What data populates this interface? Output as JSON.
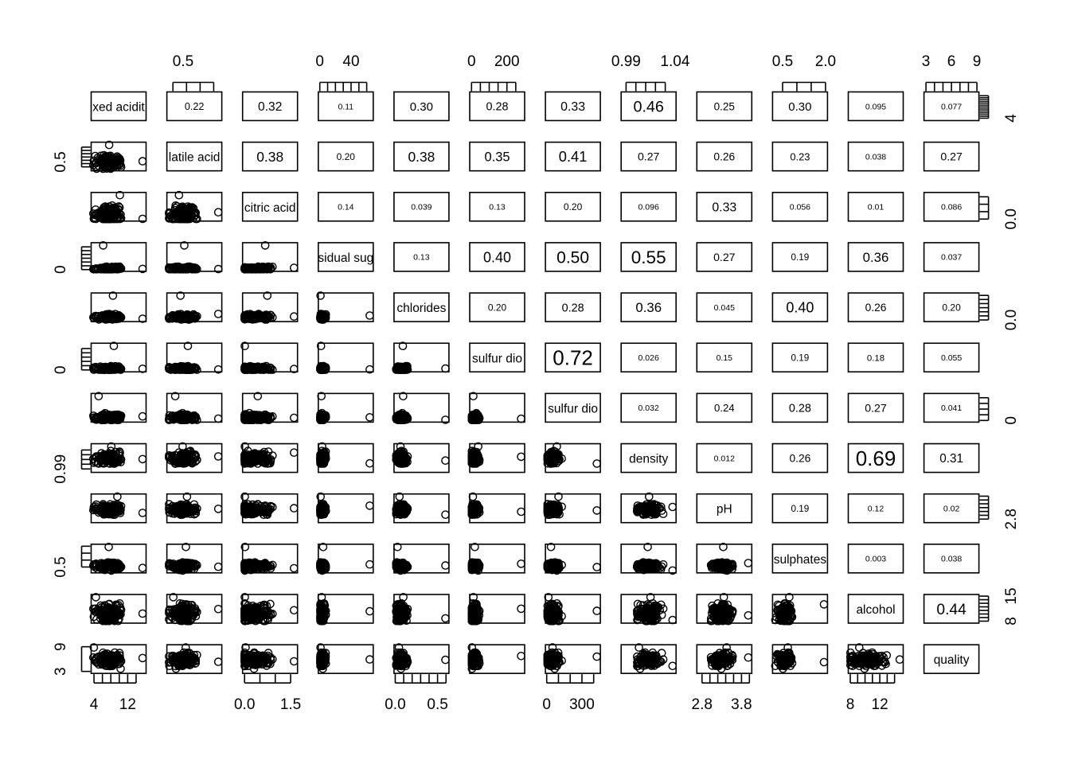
{
  "chart_data": {
    "type": "scatter",
    "variables": [
      "fixed acidity",
      "volatile acidity",
      "citric acid",
      "residual sugar",
      "chlorides",
      "free sulfur dioxide",
      "total sulfur dioxide",
      "density",
      "pH",
      "sulphates",
      "alcohol",
      "quality"
    ],
    "diagonal_labels": [
      "xed acidit",
      "latile acid",
      "citric acid",
      "sidual sug",
      "chlorides",
      "sulfur dio",
      "sulfur dio",
      "density",
      "pH",
      "sulphates",
      "alcohol",
      "quality"
    ],
    "ranges": [
      [
        3.8,
        15.9
      ],
      [
        0.08,
        1.58
      ],
      [
        0,
        1.66
      ],
      [
        0.6,
        65.8
      ],
      [
        0.009,
        0.611
      ],
      [
        1,
        289
      ],
      [
        6,
        440
      ],
      [
        0.987,
        1.039
      ],
      [
        2.72,
        4.01
      ],
      [
        0.22,
        2.0
      ],
      [
        8,
        14.9
      ],
      [
        3,
        9
      ]
    ],
    "upper_correlations": [
      [
        "0.22",
        "0.32",
        "0.11",
        "0.30",
        "0.28",
        "0.33",
        "0.46",
        "0.25",
        "0.30",
        "0.095",
        "0.077"
      ],
      [
        "0.38",
        "0.20",
        "0.38",
        "0.35",
        "0.41",
        "0.27",
        "0.26",
        "0.23",
        "0.038",
        "0.27"
      ],
      [
        "0.14",
        "0.039",
        "0.13",
        "0.20",
        "0.096",
        "0.33",
        "0.056",
        "0.01",
        "0.086"
      ],
      [
        "0.13",
        "0.40",
        "0.50",
        "0.55",
        "0.27",
        "0.19",
        "0.36",
        "0.037"
      ],
      [
        "0.20",
        "0.28",
        "0.36",
        "0.045",
        "0.40",
        "0.26",
        "0.20"
      ],
      [
        "0.72",
        "0.026",
        "0.15",
        "0.19",
        "0.18",
        "0.055"
      ],
      [
        "0.032",
        "0.24",
        "0.28",
        "0.27",
        "0.041"
      ],
      [
        "0.012",
        "0.26",
        "0.69",
        "0.31"
      ],
      [
        "0.19",
        "0.12",
        "0.02"
      ],
      [
        "0.003",
        "0.038"
      ],
      [
        "0.44"
      ]
    ],
    "top_axis": [
      {
        "col": 1,
        "ticks": [
          0.2,
          0.6,
          1.0,
          1.4
        ],
        "labels": [
          {
            "value": 0.5,
            "text": "0.5"
          }
        ]
      },
      {
        "col": 3,
        "ticks": [
          0,
          10,
          20,
          30,
          40,
          50,
          60
        ],
        "labels": [
          {
            "value": 0,
            "text": "0"
          },
          {
            "value": 40,
            "text": "40"
          }
        ]
      },
      {
        "col": 5,
        "ticks": [
          0,
          50,
          100,
          150,
          200,
          250
        ],
        "labels": [
          {
            "value": 0,
            "text": "0"
          },
          {
            "value": 200,
            "text": "200"
          }
        ]
      },
      {
        "col": 7,
        "ticks": [
          0.99,
          1.0,
          1.01,
          1.02,
          1.03
        ],
        "labels": [
          {
            "value": 0.99,
            "text": "0.99"
          },
          {
            "value": 1.04,
            "text": "1.04"
          }
        ]
      },
      {
        "col": 9,
        "ticks": [
          0.5,
          1.0,
          1.5,
          2.0
        ],
        "labels": [
          {
            "value": 0.5,
            "text": "0.5"
          },
          {
            "value": 2.0,
            "text": "2.0"
          }
        ]
      },
      {
        "col": 11,
        "ticks": [
          3,
          4,
          5,
          6,
          7,
          8,
          9
        ],
        "labels": [
          {
            "value": 3,
            "text": "3"
          },
          {
            "value": 6,
            "text": "6"
          },
          {
            "value": 9,
            "text": "9"
          }
        ]
      }
    ],
    "bottom_axis": [
      {
        "col": 0,
        "ticks": [
          4,
          6,
          8,
          10,
          12,
          14
        ],
        "labels": [
          {
            "value": 4,
            "text": "4"
          },
          {
            "value": 12,
            "text": "12"
          }
        ]
      },
      {
        "col": 2,
        "ticks": [
          0,
          0.5,
          1.0,
          1.5
        ],
        "labels": [
          {
            "value": 0,
            "text": "0.0"
          },
          {
            "value": 1.5,
            "text": "1.5"
          }
        ]
      },
      {
        "col": 4,
        "ticks": [
          0,
          0.1,
          0.2,
          0.3,
          0.4,
          0.5,
          0.6
        ],
        "labels": [
          {
            "value": 0,
            "text": "0.0"
          },
          {
            "value": 0.5,
            "text": "0.5"
          }
        ]
      },
      {
        "col": 6,
        "ticks": [
          0,
          100,
          200,
          300,
          400
        ],
        "labels": [
          {
            "value": 0,
            "text": "0"
          },
          {
            "value": 300,
            "text": "300"
          }
        ]
      },
      {
        "col": 8,
        "ticks": [
          2.8,
          3.0,
          3.2,
          3.4,
          3.6,
          3.8,
          4.0
        ],
        "labels": [
          {
            "value": 2.8,
            "text": "2.8"
          },
          {
            "value": 3.8,
            "text": "3.8"
          }
        ]
      },
      {
        "col": 10,
        "ticks": [
          8,
          9,
          10,
          11,
          12,
          13,
          14
        ],
        "labels": [
          {
            "value": 8,
            "text": "8"
          },
          {
            "value": 12,
            "text": "12"
          }
        ]
      }
    ],
    "left_axis": [
      {
        "row": 1,
        "ticks": [
          0.2,
          0.4,
          0.6,
          0.8,
          1.0,
          1.2,
          1.4
        ],
        "labels": [
          {
            "value": 0.5,
            "text": "0.5"
          }
        ]
      },
      {
        "row": 3,
        "ticks": [
          0,
          10,
          20,
          30,
          40,
          50,
          60
        ],
        "labels": [
          {
            "value": 0,
            "text": "0"
          }
        ]
      },
      {
        "row": 5,
        "ticks": [
          0,
          50,
          100,
          150,
          200,
          250
        ],
        "labels": [
          {
            "value": 0,
            "text": "0"
          }
        ]
      },
      {
        "row": 7,
        "ticks": [
          0.99,
          1.0,
          1.01,
          1.02,
          1.03
        ],
        "labels": [
          {
            "value": 0.99,
            "text": "0.99"
          }
        ]
      },
      {
        "row": 9,
        "ticks": [
          0.5,
          1.0,
          1.5,
          2.0
        ],
        "labels": [
          {
            "value": 0.5,
            "text": "0.5"
          }
        ]
      },
      {
        "row": 11,
        "ticks": [
          3,
          9
        ],
        "labels": [
          {
            "value": 3,
            "text": "3"
          },
          {
            "value": 9,
            "text": "9"
          }
        ]
      }
    ],
    "right_axis": [
      {
        "row": 0,
        "ticks": [
          4,
          5,
          6,
          7,
          8,
          9,
          10,
          11,
          12,
          13,
          14,
          15
        ],
        "labels": [
          {
            "value": 4,
            "text": "4"
          }
        ]
      },
      {
        "row": 2,
        "ticks": [
          0,
          0.5,
          1.0,
          1.5
        ],
        "labels": [
          {
            "value": 0,
            "text": "0.0"
          }
        ]
      },
      {
        "row": 4,
        "ticks": [
          0,
          0.1,
          0.2,
          0.3,
          0.4,
          0.5,
          0.6
        ],
        "labels": [
          {
            "value": 0,
            "text": "0.0"
          }
        ]
      },
      {
        "row": 6,
        "ticks": [
          0,
          100,
          200,
          300,
          400
        ],
        "labels": [
          {
            "value": 0,
            "text": "0"
          }
        ]
      },
      {
        "row": 8,
        "ticks": [
          2.8,
          3.0,
          3.2,
          3.4,
          3.6,
          3.8,
          4.0
        ],
        "labels": [
          {
            "value": 2.8,
            "text": "2.8"
          }
        ]
      },
      {
        "row": 10,
        "ticks": [
          8,
          9,
          10,
          11,
          12,
          13,
          14,
          15
        ],
        "labels": [
          {
            "value": 8,
            "text": "8"
          },
          {
            "value": 15,
            "text": "15"
          }
        ]
      }
    ]
  }
}
